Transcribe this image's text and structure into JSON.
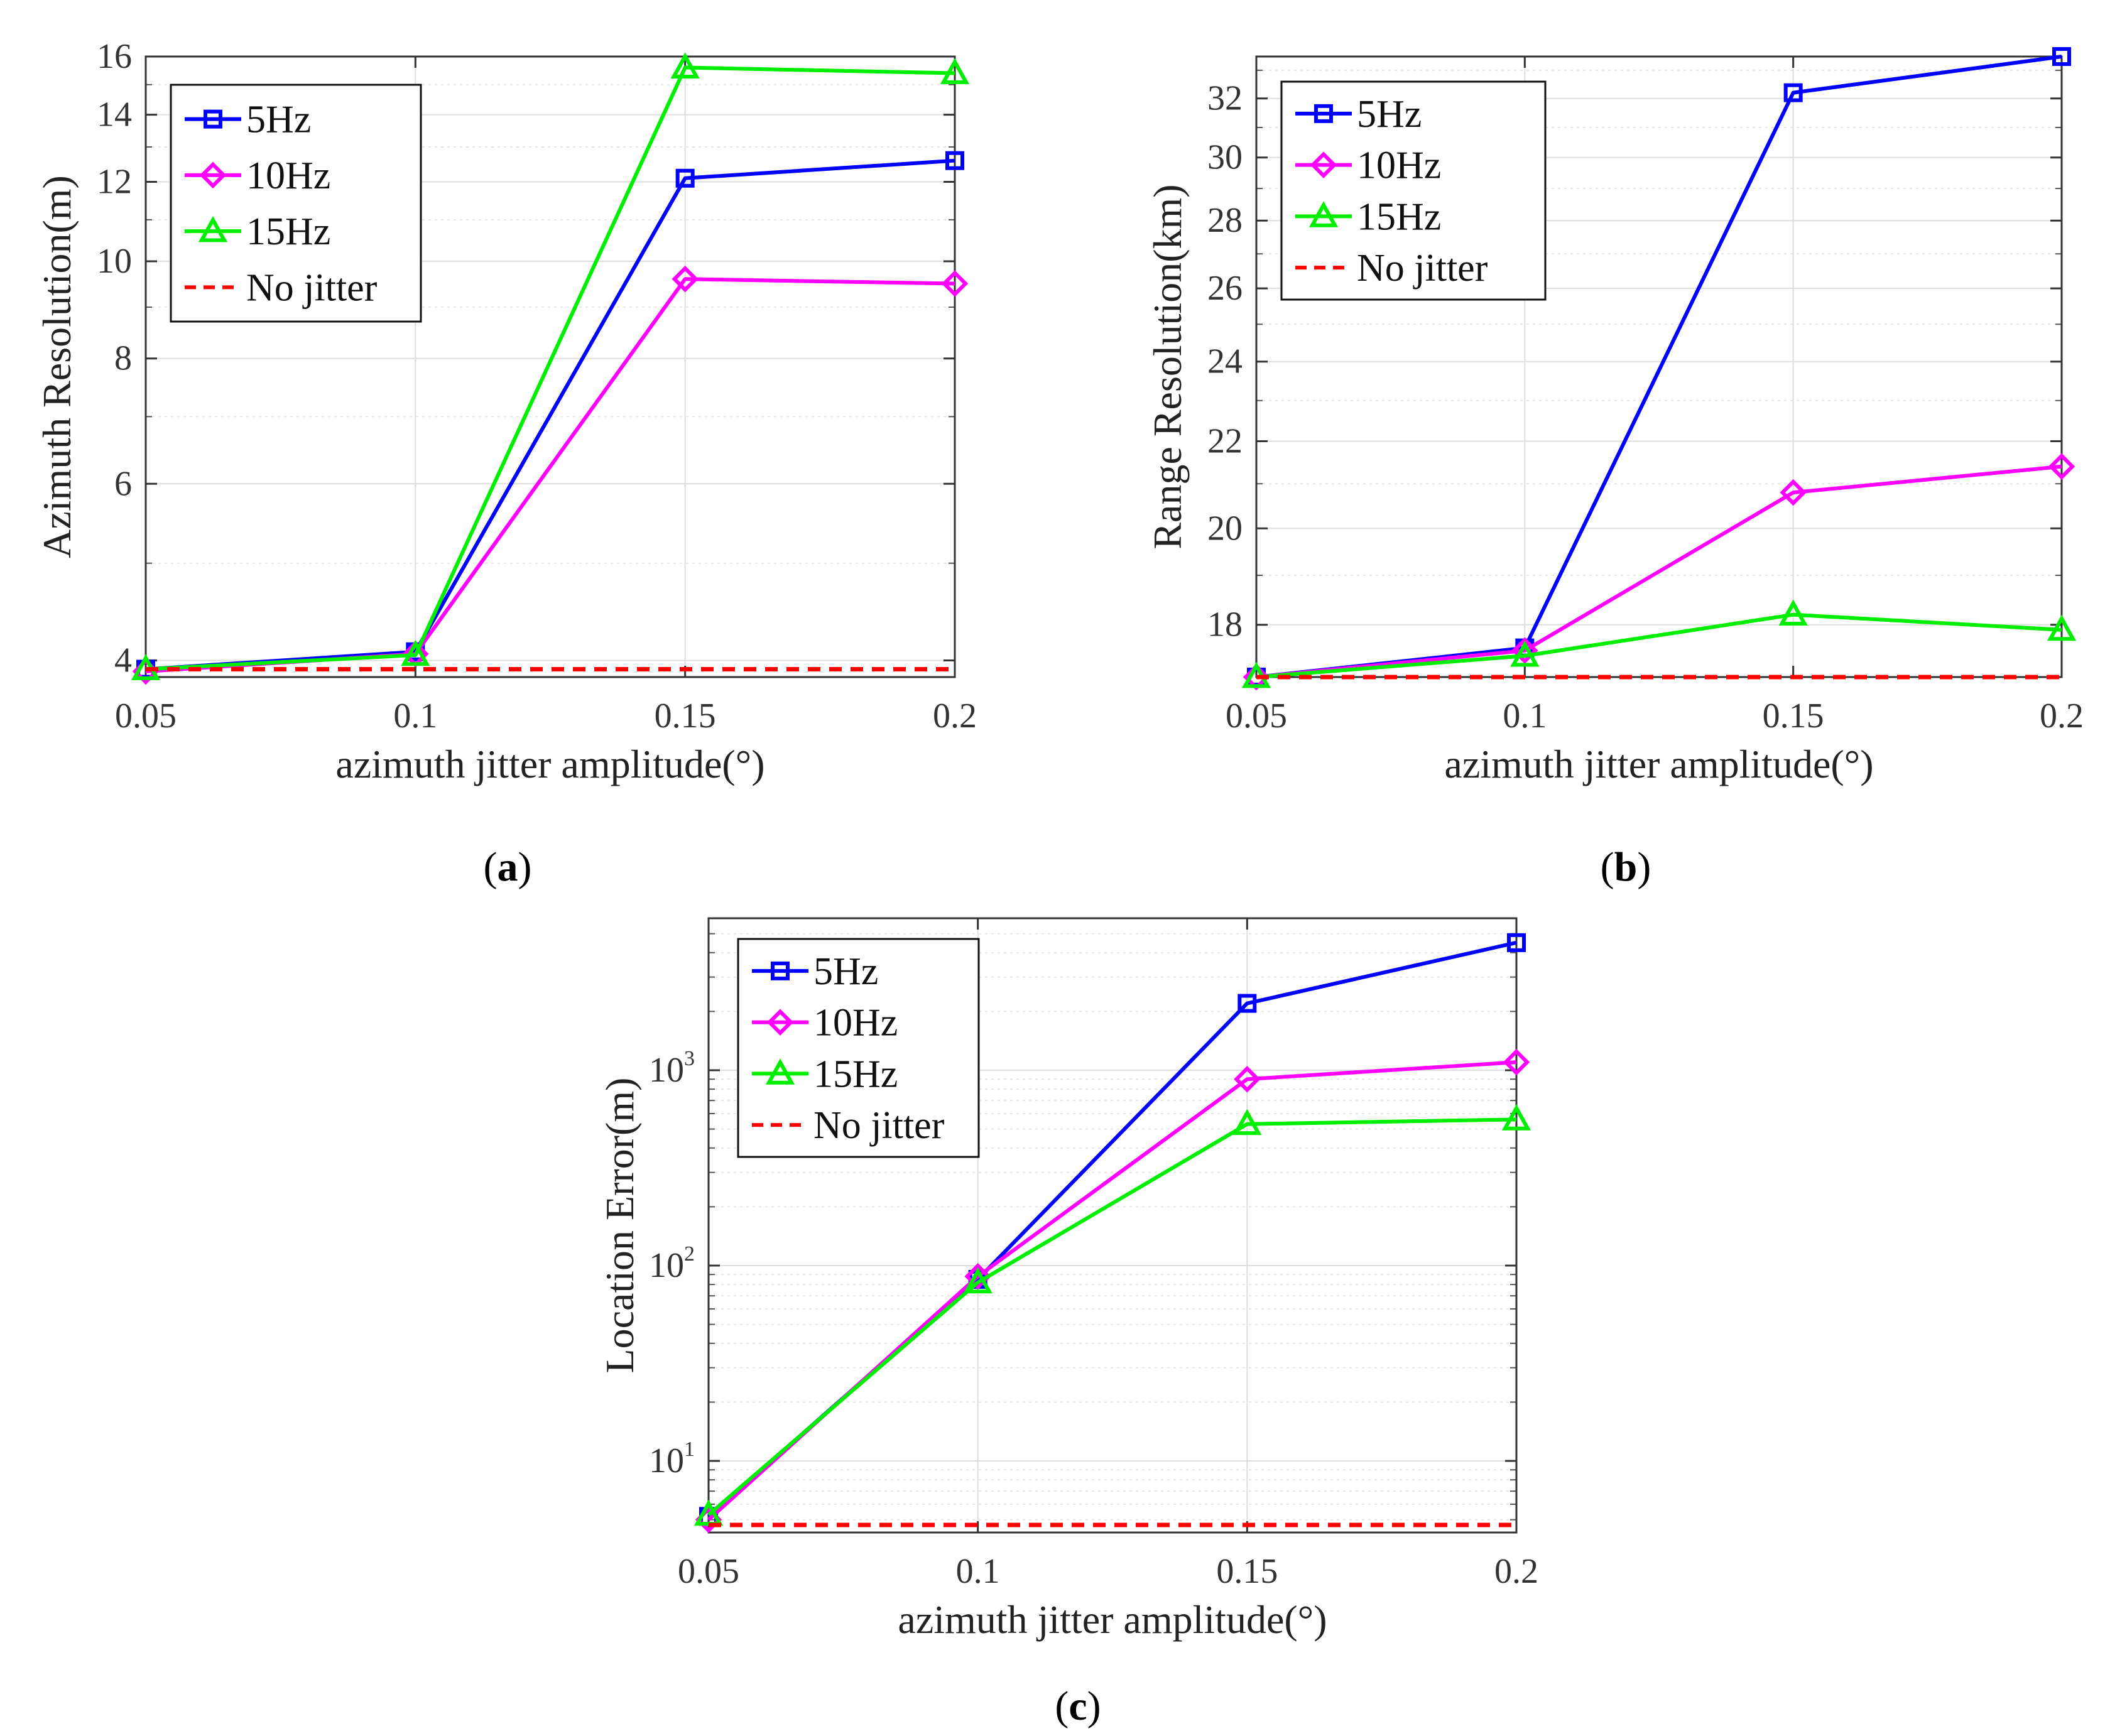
{
  "panels": {
    "a": {
      "caption_open": "(",
      "caption_letter": "a",
      "caption_close": ")"
    },
    "b": {
      "caption_open": "(",
      "caption_letter": "b",
      "caption_close": ")"
    },
    "c": {
      "caption_open": "(",
      "caption_letter": "c",
      "caption_close": ")"
    }
  },
  "chart_data": [
    {
      "id": "a",
      "type": "line",
      "yscale": "log",
      "title": "",
      "xlabel": "azimuth jitter amplitude(°)",
      "ylabel": "Azimuth Resolution(m)",
      "x": [
        0.05,
        0.1,
        0.15,
        0.2
      ],
      "xlim": [
        0.05,
        0.2
      ],
      "xticks": [
        0.05,
        0.1,
        0.15,
        0.2
      ],
      "xtick_labels": [
        "0.05",
        "0.1",
        "0.15",
        "0.2"
      ],
      "ylim": [
        3.85,
        16
      ],
      "yticks": [
        4,
        6,
        8,
        10,
        12,
        14,
        16
      ],
      "ytick_labels": [
        "4",
        "6",
        "8",
        "10",
        "12",
        "14",
        "16"
      ],
      "minor_yticks": [
        5,
        7,
        9,
        11,
        13,
        15
      ],
      "legend_position": "top-left",
      "series": [
        {
          "name": "5Hz",
          "values": [
            3.92,
            4.08,
            12.1,
            12.6
          ],
          "color": "#0000ff",
          "marker": "square",
          "dash": "solid"
        },
        {
          "name": "10Hz",
          "values": [
            3.9,
            4.06,
            9.6,
            9.5
          ],
          "color": "#ff00ff",
          "marker": "diamond",
          "dash": "solid"
        },
        {
          "name": "15Hz",
          "values": [
            3.92,
            4.05,
            15.6,
            15.4
          ],
          "color": "#00ee00",
          "marker": "triangle",
          "dash": "solid"
        },
        {
          "name": "No jitter",
          "values": [
            3.92,
            3.92,
            3.92,
            3.92
          ],
          "color": "#ff0000",
          "marker": "none",
          "dash": "dashed"
        }
      ]
    },
    {
      "id": "b",
      "type": "line",
      "yscale": "log",
      "title": "",
      "xlabel": "azimuth jitter amplitude(°)",
      "ylabel": "Range Resolution(km)",
      "x": [
        0.05,
        0.1,
        0.15,
        0.2
      ],
      "xlim": [
        0.05,
        0.2
      ],
      "xticks": [
        0.05,
        0.1,
        0.15,
        0.2
      ],
      "xtick_labels": [
        "0.05",
        "0.1",
        "0.15",
        "0.2"
      ],
      "ylim": [
        17.0,
        33.5
      ],
      "yticks": [
        18,
        20,
        22,
        24,
        26,
        28,
        30,
        32
      ],
      "ytick_labels": [
        "18",
        "20",
        "22",
        "24",
        "26",
        "28",
        "30",
        "32"
      ],
      "minor_yticks": [
        19,
        21,
        23,
        25,
        27,
        29,
        31,
        33
      ],
      "legend_position": "top-left",
      "series": [
        {
          "name": "5Hz",
          "values": [
            17.0,
            17.55,
            32.2,
            33.5
          ],
          "color": "#0000ff",
          "marker": "square",
          "dash": "solid"
        },
        {
          "name": "10Hz",
          "values": [
            17.0,
            17.5,
            20.8,
            21.4
          ],
          "color": "#ff00ff",
          "marker": "diamond",
          "dash": "solid"
        },
        {
          "name": "15Hz",
          "values": [
            17.0,
            17.4,
            18.2,
            17.9
          ],
          "color": "#00ee00",
          "marker": "triangle",
          "dash": "solid"
        },
        {
          "name": "No jitter",
          "values": [
            17.0,
            17.0,
            17.0,
            17.0
          ],
          "color": "#ff0000",
          "marker": "none",
          "dash": "dashed"
        }
      ]
    },
    {
      "id": "c",
      "type": "line",
      "yscale": "log",
      "title": "",
      "xlabel": "azimuth jitter amplitude(°)",
      "ylabel": "Location Error(m)",
      "x": [
        0.05,
        0.1,
        0.15,
        0.2
      ],
      "xlim": [
        0.05,
        0.2
      ],
      "xticks": [
        0.05,
        0.1,
        0.15,
        0.2
      ],
      "xtick_labels": [
        "0.05",
        "0.1",
        "0.15",
        "0.2"
      ],
      "ylim": [
        4.3,
        6000
      ],
      "yticks": [
        10,
        100,
        1000
      ],
      "ytick_labels": [
        {
          "base": "10",
          "exp": "1"
        },
        {
          "base": "10",
          "exp": "2"
        },
        {
          "base": "10",
          "exp": "3"
        }
      ],
      "minor_yticks": [
        5,
        6,
        7,
        8,
        9,
        20,
        30,
        40,
        50,
        60,
        70,
        80,
        90,
        200,
        300,
        400,
        500,
        600,
        700,
        800,
        900,
        2000,
        3000,
        4000,
        5000
      ],
      "legend_position": "top-left",
      "series": [
        {
          "name": "5Hz",
          "values": [
            5.2,
            85,
            2200,
            4500
          ],
          "color": "#0000ff",
          "marker": "square",
          "dash": "solid"
        },
        {
          "name": "10Hz",
          "values": [
            5.0,
            88,
            900,
            1100
          ],
          "color": "#ff00ff",
          "marker": "diamond",
          "dash": "solid"
        },
        {
          "name": "15Hz",
          "values": [
            5.3,
            82,
            530,
            560
          ],
          "color": "#00ee00",
          "marker": "triangle",
          "dash": "solid"
        },
        {
          "name": "No jitter",
          "values": [
            4.7,
            4.7,
            4.7,
            4.7
          ],
          "color": "#ff0000",
          "marker": "none",
          "dash": "dashed"
        }
      ]
    }
  ]
}
